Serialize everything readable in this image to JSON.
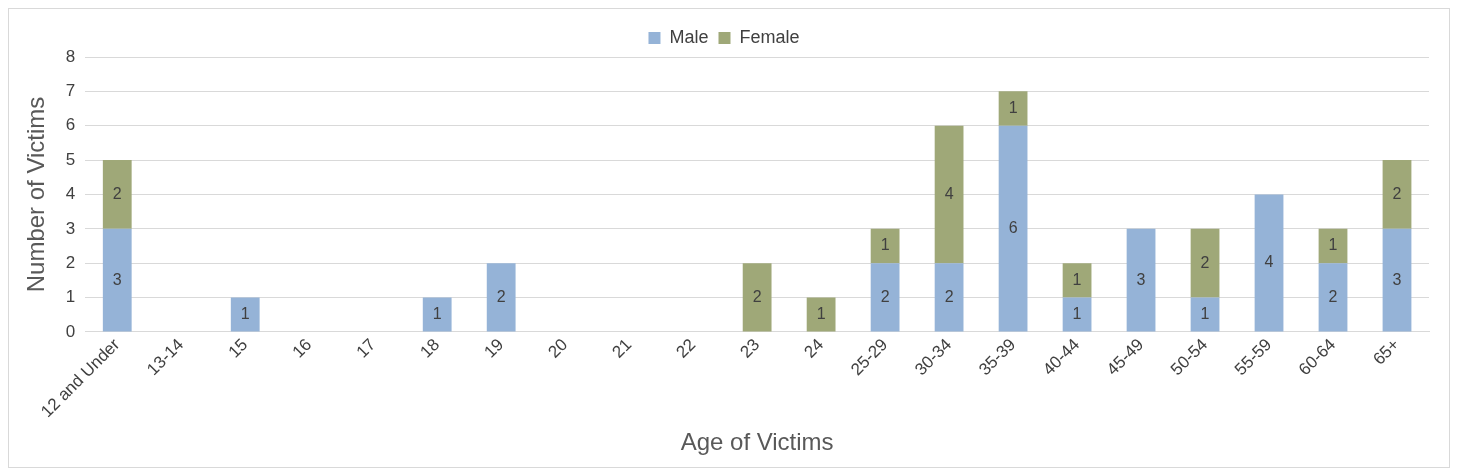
{
  "chart_data": {
    "type": "bar",
    "stacked": true,
    "xlabel": "Age of Victims",
    "ylabel": "Number of Victims",
    "categories": [
      "12 and Under",
      "13-14",
      "15",
      "16",
      "17",
      "18",
      "19",
      "20",
      "21",
      "22",
      "23",
      "24",
      "25-29",
      "30-34",
      "35-39",
      "40-44",
      "45-49",
      "50-54",
      "55-59",
      "60-64",
      "65+"
    ],
    "series": [
      {
        "name": "Male",
        "color": "#95b3d7",
        "values": [
          3,
          0,
          1,
          0,
          0,
          1,
          2,
          0,
          0,
          0,
          0,
          0,
          2,
          2,
          6,
          1,
          3,
          1,
          4,
          2,
          3
        ],
        "value_labels": [
          "3",
          null,
          "1",
          null,
          null,
          "1",
          "2",
          null,
          null,
          null,
          null,
          null,
          "2",
          "2",
          "6",
          "1",
          "3",
          "1",
          "4",
          "2",
          "3"
        ]
      },
      {
        "name": "Female",
        "color": "#9fa878",
        "values": [
          2,
          0,
          0,
          0,
          0,
          0,
          0,
          0,
          0,
          0,
          2,
          1,
          1,
          4,
          1,
          1,
          0,
          2,
          0,
          1,
          2
        ],
        "value_labels": [
          "2",
          null,
          null,
          null,
          null,
          null,
          null,
          null,
          null,
          null,
          "2",
          "1",
          "1",
          "4",
          "1",
          "1",
          null,
          "2",
          null,
          "1",
          "2"
        ]
      }
    ],
    "ylim": [
      0,
      8
    ],
    "yticks": [
      0,
      1,
      2,
      3,
      4,
      5,
      6,
      7,
      8
    ],
    "grid": "y",
    "legend": "top"
  }
}
